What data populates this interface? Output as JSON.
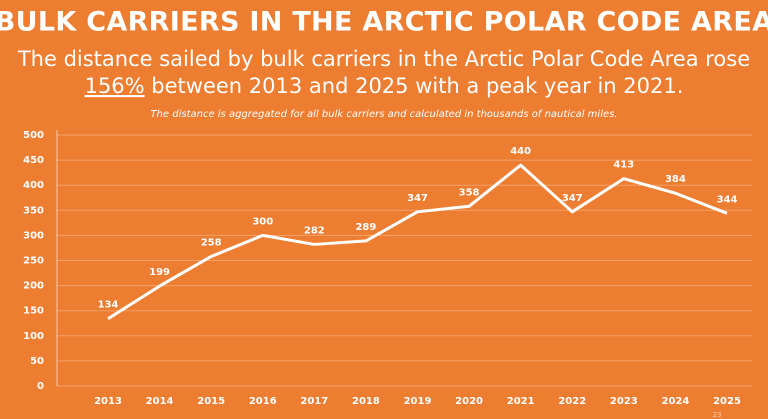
{
  "chart_data": {
    "type": "line",
    "title": "BULK CARRIERS IN THE ARCTIC  POLAR CODE AREA",
    "subtitle": [
      "The distance sailed by bulk carriers in the Arctic Polar Code Area rose",
      "156%",
      " between 2013 and 2025 with a peak year in 2021."
    ],
    "note": "The distance is aggregated for all bulk carriers and calculated in thousands of nautical miles.",
    "page_number": "23",
    "categories": [
      "2013",
      "2014",
      "2015",
      "2016",
      "2017",
      "2018",
      "2019",
      "2020",
      "2021",
      "2022",
      "2023",
      "2024",
      "2025"
    ],
    "values": [
      134,
      199,
      258,
      300,
      282,
      289,
      347,
      358,
      440,
      347,
      413,
      384,
      344
    ],
    "color": "#ffffff",
    "ylim": [
      0,
      500
    ],
    "yticks": [
      0,
      50,
      100,
      150,
      200,
      250,
      300,
      350,
      400,
      450,
      500
    ],
    "grid": true
  }
}
